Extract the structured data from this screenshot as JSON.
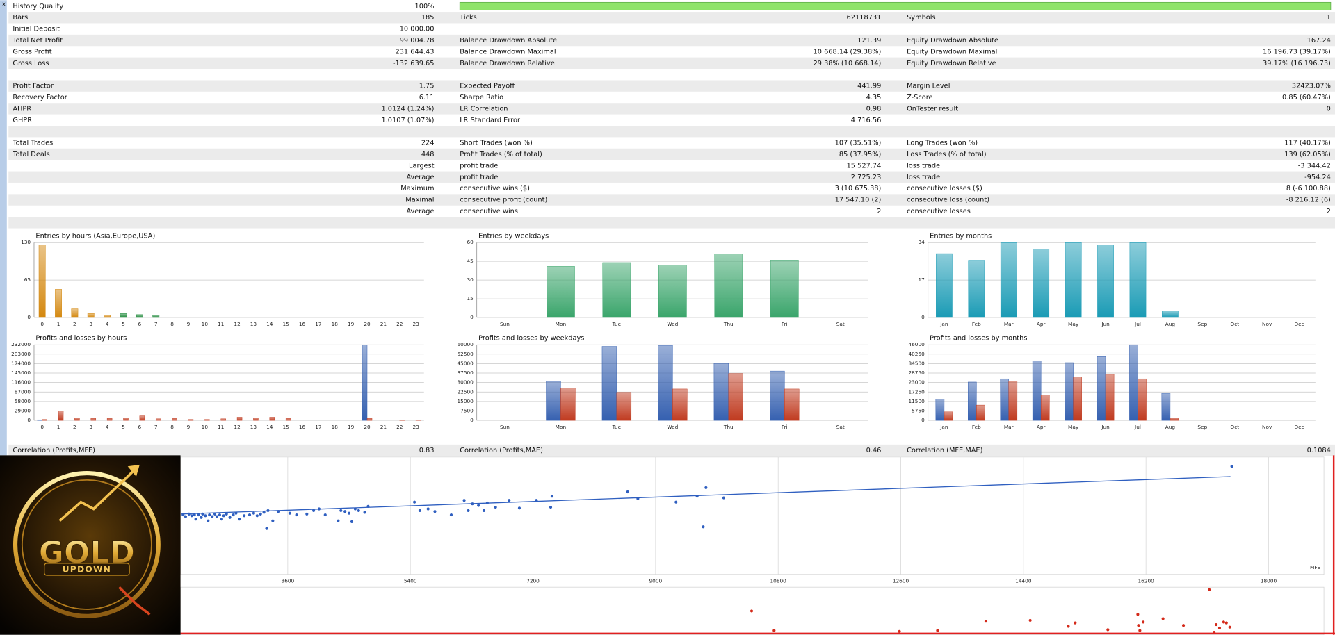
{
  "report": {
    "rows": [
      {
        "cells": [
          {
            "label": "History Quality",
            "value": "100%"
          }
        ]
      },
      {
        "cells": [
          {
            "label": "Bars",
            "value": "185"
          },
          {
            "label": "Ticks",
            "value": "62118731"
          },
          {
            "label": "Symbols",
            "value": "1"
          }
        ]
      },
      {
        "cells": [
          {
            "label": "Initial Deposit",
            "value": "10 000.00"
          }
        ]
      },
      {
        "cells": [
          {
            "label": "Total Net Profit",
            "value": "99 004.78"
          },
          {
            "label": "Balance Drawdown Absolute",
            "value": "121.39"
          },
          {
            "label": "Equity Drawdown Absolute",
            "value": "167.24"
          }
        ]
      },
      {
        "cells": [
          {
            "label": "Gross Profit",
            "value": "231 644.43"
          },
          {
            "label": "Balance Drawdown Maximal",
            "value": "10 668.14 (29.38%)"
          },
          {
            "label": "Equity Drawdown Maximal",
            "value": "16 196.73 (39.17%)"
          }
        ]
      },
      {
        "cells": [
          {
            "label": "Gross Loss",
            "value": "-132 639.65"
          },
          {
            "label": "Balance Drawdown Relative",
            "value": "29.38% (10 668.14)"
          },
          {
            "label": "Equity Drawdown Relative",
            "value": "39.17% (16 196.73)"
          }
        ]
      },
      {
        "cells": []
      },
      {
        "cells": [
          {
            "label": "Profit Factor",
            "value": "1.75"
          },
          {
            "label": "Expected Payoff",
            "value": "441.99"
          },
          {
            "label": "Margin Level",
            "value": "32423.07%"
          }
        ]
      },
      {
        "cells": [
          {
            "label": "Recovery Factor",
            "value": "6.11"
          },
          {
            "label": "Sharpe Ratio",
            "value": "4.35"
          },
          {
            "label": "Z-Score",
            "value": "0.85 (60.47%)"
          }
        ]
      },
      {
        "cells": [
          {
            "label": "AHPR",
            "value": "1.0124 (1.24%)"
          },
          {
            "label": "LR Correlation",
            "value": "0.98"
          },
          {
            "label": "OnTester result",
            "value": "0"
          }
        ]
      },
      {
        "cells": [
          {
            "label": "GHPR",
            "value": "1.0107 (1.07%)"
          },
          {
            "label": "LR Standard Error",
            "value": "4 716.56"
          }
        ]
      },
      {
        "cells": []
      },
      {
        "cells": [
          {
            "label": "Total Trades",
            "value": "224"
          },
          {
            "label": "Short Trades (won %)",
            "value": "107 (35.51%)"
          },
          {
            "label": "Long Trades (won %)",
            "value": "117 (40.17%)"
          }
        ]
      },
      {
        "cells": [
          {
            "label": "Total Deals",
            "value": "448"
          },
          {
            "label": "Profit Trades (% of total)",
            "value": "85 (37.95%)"
          },
          {
            "label": "Loss Trades (% of total)",
            "value": "139 (62.05%)"
          }
        ]
      },
      {
        "heading": "Largest",
        "cells": [
          {
            "label": "profit trade",
            "value": "15 527.74"
          },
          {
            "label": "loss trade",
            "value": "-3 344.42"
          }
        ]
      },
      {
        "heading": "Average",
        "cells": [
          {
            "label": "profit trade",
            "value": "2 725.23"
          },
          {
            "label": "loss trade",
            "value": "-954.24"
          }
        ]
      },
      {
        "heading": "Maximum",
        "cells": [
          {
            "label": "consecutive wins ($)",
            "value": "3 (10 675.38)"
          },
          {
            "label": "consecutive losses ($)",
            "value": "8 (-6 100.88)"
          }
        ]
      },
      {
        "heading": "Maximal",
        "cells": [
          {
            "label": "consecutive profit (count)",
            "value": "17 547.10 (2)"
          },
          {
            "label": "consecutive loss (count)",
            "value": "-8 216.12 (6)"
          }
        ]
      },
      {
        "heading": "Average",
        "cells": [
          {
            "label": "consecutive wins",
            "value": "2"
          },
          {
            "label": "consecutive losses",
            "value": "2"
          }
        ]
      },
      {
        "cells": []
      }
    ],
    "correlations": [
      {
        "label": "Correlation (Profits,MFE)",
        "value": "0.83"
      },
      {
        "label": "Correlation (Profits,MAE)",
        "value": "0.46"
      },
      {
        "label": "Correlation (MFE,MAE)",
        "value": "0.1084"
      }
    ]
  },
  "logo": {
    "title": "GOLD",
    "subtitle": "UPDOWN"
  },
  "chart_data": [
    {
      "type": "bar",
      "title": "Entries by hours (Asia,Europe,USA)",
      "categories": [
        "0",
        "1",
        "2",
        "3",
        "4",
        "5",
        "6",
        "7",
        "8",
        "9",
        "10",
        "11",
        "12",
        "13",
        "14",
        "15",
        "16",
        "17",
        "18",
        "19",
        "20",
        "21",
        "22",
        "23"
      ],
      "values": [
        126,
        49,
        15,
        7,
        4,
        7,
        5,
        4,
        0,
        0,
        0,
        0,
        0,
        0,
        0,
        0,
        0,
        0,
        0,
        0,
        0,
        0,
        0,
        0
      ],
      "colors": [
        "#d4880f",
        "#d4880f",
        "#d4880f",
        "#d4880f",
        "#d4880f",
        "#1f8a3b",
        "#1f8a3b",
        "#1f8a3b",
        "#1f8a3b",
        "#1f8a3b",
        "#1f8a3b",
        "#1f8a3b",
        "#1f8a3b",
        "#2f5fb3",
        "#2f5fb3",
        "#2f5fb3",
        "#2f5fb3",
        "#2f5fb3",
        "#2f5fb3",
        "#2f5fb3",
        "#2f5fb3",
        "#2f5fb3",
        "#2f5fb3",
        "#2f5fb3"
      ],
      "ylim": [
        0,
        130
      ],
      "yticks": [
        0,
        65,
        130
      ],
      "grid": true
    },
    {
      "type": "bar",
      "title": "Entries by weekdays",
      "categories": [
        "Sun",
        "Mon",
        "Tue",
        "Wed",
        "Thu",
        "Fri",
        "Sat"
      ],
      "values": [
        0,
        41,
        44,
        42,
        51,
        46,
        0
      ],
      "color": "#3aa56b",
      "ylim": [
        0,
        60
      ],
      "yticks": [
        0,
        15,
        30,
        45,
        60
      ],
      "grid": true
    },
    {
      "type": "bar",
      "title": "Entries by months",
      "categories": [
        "Jan",
        "Feb",
        "Mar",
        "Apr",
        "May",
        "Jun",
        "Jul",
        "Aug",
        "Sep",
        "Oct",
        "Nov",
        "Dec"
      ],
      "values": [
        29,
        26,
        34,
        31,
        34,
        33,
        34,
        3,
        0,
        0,
        0,
        0
      ],
      "color": "#1a9bb5",
      "ylim": [
        0,
        34
      ],
      "yticks": [
        0,
        17,
        34
      ],
      "grid": true
    },
    {
      "type": "bar",
      "title": "Profits and losses by hours",
      "categories": [
        "0",
        "1",
        "2",
        "3",
        "4",
        "5",
        "6",
        "7",
        "8",
        "9",
        "10",
        "11",
        "12",
        "13",
        "14",
        "15",
        "16",
        "17",
        "18",
        "19",
        "20",
        "21",
        "22",
        "23"
      ],
      "series": [
        {
          "color": "#3560b0",
          "values": [
            2000,
            0,
            0,
            0,
            0,
            0,
            0,
            0,
            0,
            0,
            0,
            0,
            0,
            0,
            0,
            0,
            0,
            0,
            0,
            0,
            231000,
            0,
            0,
            0
          ]
        },
        {
          "color": "#c03a1f",
          "values": [
            3000,
            28700,
            8000,
            6000,
            6000,
            8000,
            14000,
            5000,
            6000,
            3000,
            3000,
            5000,
            10000,
            8000,
            10000,
            6000,
            0,
            0,
            0,
            0,
            6000,
            0,
            1000,
            1000
          ]
        }
      ],
      "ylim": [
        0,
        232000
      ],
      "yticks": [
        0,
        29000,
        58000,
        87000,
        116000,
        145000,
        174000,
        203000,
        232000
      ],
      "grid": true
    },
    {
      "type": "bar",
      "title": "Profits and losses by weekdays",
      "categories": [
        "Sun",
        "Mon",
        "Tue",
        "Wed",
        "Thu",
        "Fri",
        "Sat"
      ],
      "series": [
        {
          "color": "#3560b0",
          "values": [
            0,
            31000,
            58700,
            59500,
            45200,
            39100,
            0
          ]
        },
        {
          "color": "#c03a1f",
          "values": [
            0,
            25600,
            22200,
            24900,
            37100,
            24900,
            0
          ]
        }
      ],
      "ylim": [
        0,
        60000
      ],
      "yticks": [
        0,
        7500,
        15000,
        22500,
        30000,
        37500,
        45000,
        52500,
        60000
      ],
      "grid": true
    },
    {
      "type": "bar",
      "title": "Profits and losses by months",
      "categories": [
        "Jan",
        "Feb",
        "Mar",
        "Apr",
        "May",
        "Jun",
        "Jul",
        "Aug",
        "Sep",
        "Oct",
        "Nov",
        "Dec"
      ],
      "series": [
        {
          "color": "#3560b0",
          "values": [
            12900,
            23300,
            25300,
            36200,
            35100,
            38800,
            46000,
            16500,
            0,
            0,
            0,
            0
          ]
        },
        {
          "color": "#c03a1f",
          "values": [
            5200,
            9300,
            23800,
            15500,
            26400,
            28000,
            25300,
            1600,
            0,
            0,
            0,
            0
          ]
        }
      ],
      "ylim": [
        0,
        46000
      ],
      "yticks": [
        0,
        5750,
        11500,
        17250,
        23000,
        28750,
        34500,
        40250,
        46000
      ],
      "grid": true
    },
    {
      "type": "scatter",
      "xlabel": "MFE",
      "color": "#2f5fc0",
      "trend_color": "#2f5fc0",
      "x": [
        2063,
        2100,
        2150,
        2190,
        2230,
        2250,
        2290,
        2330,
        2350,
        2390,
        2430,
        2450,
        2490,
        2530,
        2560,
        2600,
        2630,
        2660,
        2700,
        2750,
        2800,
        2840,
        2890,
        2960,
        3040,
        3100,
        3150,
        3200,
        3250,
        3290,
        3310,
        3380,
        3460,
        3630,
        3730,
        3880,
        3980,
        4060,
        4150,
        4340,
        4380,
        4440,
        4500,
        4540,
        4590,
        4640,
        4730,
        4780,
        5460,
        5540,
        5660,
        5760,
        6000,
        6190,
        6250,
        6310,
        6400,
        6480,
        6530,
        6650,
        6850,
        7000,
        7250,
        7460,
        7480,
        8590,
        8740,
        9300,
        9610,
        9700,
        9740,
        10000,
        17460
      ],
      "y": [
        1700,
        1200,
        1940,
        1460,
        1700,
        490,
        1700,
        970,
        1940,
        1460,
        0,
        1700,
        1200,
        1940,
        1200,
        1700,
        490,
        1460,
        1940,
        970,
        1700,
        2180,
        490,
        1460,
        1700,
        2180,
        1460,
        1940,
        2430,
        -2180,
        2910,
        0,
        2670,
        2180,
        1700,
        1940,
        2910,
        3400,
        1700,
        0,
        2910,
        2670,
        2180,
        -240,
        3400,
        2910,
        2430,
        4120,
        5340,
        2910,
        3400,
        2670,
        1700,
        5820,
        2910,
        4850,
        4370,
        2910,
        5090,
        3880,
        5820,
        3640,
        5820,
        3880,
        7030,
        8250,
        6310,
        5340,
        7030,
        -1700,
        9460,
        6550,
        15520
      ],
      "trend_line": {
        "x": [
          2030,
          17440
        ],
        "y": [
          1940,
          12610
        ]
      },
      "xlim": [
        2025,
        18812.5
      ],
      "ylim": [
        -15280,
        18190
      ],
      "xticks": [
        3600,
        5400,
        7200,
        9000,
        10800,
        12600,
        14400,
        16200,
        18000
      ]
    },
    {
      "type": "scatter",
      "color": "#d42a1a",
      "x": [
        10410,
        10740,
        12580,
        13140,
        13850,
        14500,
        15060,
        15160,
        15640,
        16080,
        16090,
        16110,
        16160,
        16450,
        16750,
        17130,
        17230,
        17280,
        17340,
        17380,
        17430,
        17200
      ],
      "y": [
        7680,
        320,
        0,
        320,
        3840,
        4160,
        1920,
        3200,
        640,
        6400,
        2240,
        320,
        3520,
        4800,
        2240,
        15680,
        2560,
        1280,
        3520,
        3200,
        1600,
        -320
      ],
      "xlim": [
        2025,
        18812.5
      ],
      "ylim": [
        -1280,
        16640
      ]
    }
  ]
}
